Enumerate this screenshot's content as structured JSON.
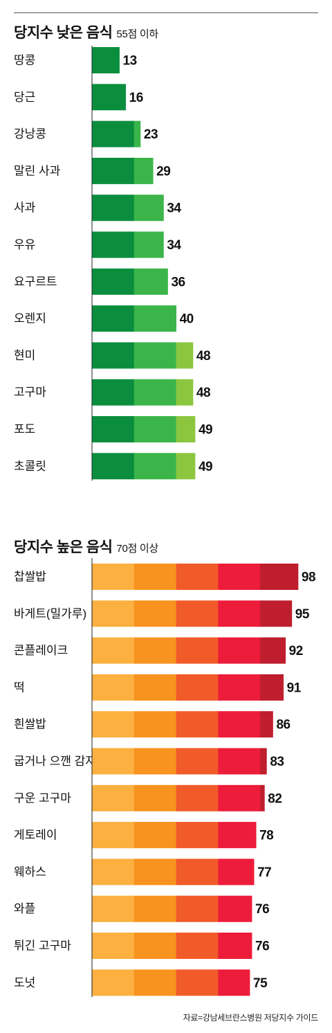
{
  "chart_data": [
    {
      "type": "bar",
      "orientation": "horizontal",
      "title": "당지수 낮은 음식",
      "subtitle": "55점 이하",
      "categories": [
        "땅콩",
        "당근",
        "강낭콩",
        "말린 사과",
        "사과",
        "우유",
        "요구르트",
        "오렌지",
        "현미",
        "고구마",
        "포도",
        "초콜릿"
      ],
      "values": [
        13,
        16,
        23,
        29,
        34,
        34,
        36,
        40,
        48,
        48,
        49,
        49
      ],
      "xlim": [
        0,
        100
      ],
      "band_colors": [
        "#0a8e3e",
        "#3bb54a",
        "#8cc63f"
      ],
      "grid": false,
      "legend": "none"
    },
    {
      "type": "bar",
      "orientation": "horizontal",
      "title": "당지수 높은 음식",
      "subtitle": "70점 이상",
      "categories": [
        "찹쌀밥",
        "바게트(밀가루)",
        "콘플레이크",
        "떡",
        "흰쌀밥",
        "굽거나 으깬 감자",
        "구운 고구마",
        "게토레이",
        "웨하스",
        "와플",
        "튀긴 고구마",
        "도넛"
      ],
      "values": [
        98,
        95,
        92,
        91,
        86,
        83,
        82,
        78,
        77,
        76,
        76,
        75
      ],
      "xlim": [
        0,
        100
      ],
      "band_colors": [
        "#fbb040",
        "#f7931e",
        "#f15a29",
        "#ed1c3a",
        "#be1e2d"
      ],
      "grid": false,
      "legend": "none"
    }
  ],
  "source": "자료=강남세브란스병원 저당지수 가이드"
}
